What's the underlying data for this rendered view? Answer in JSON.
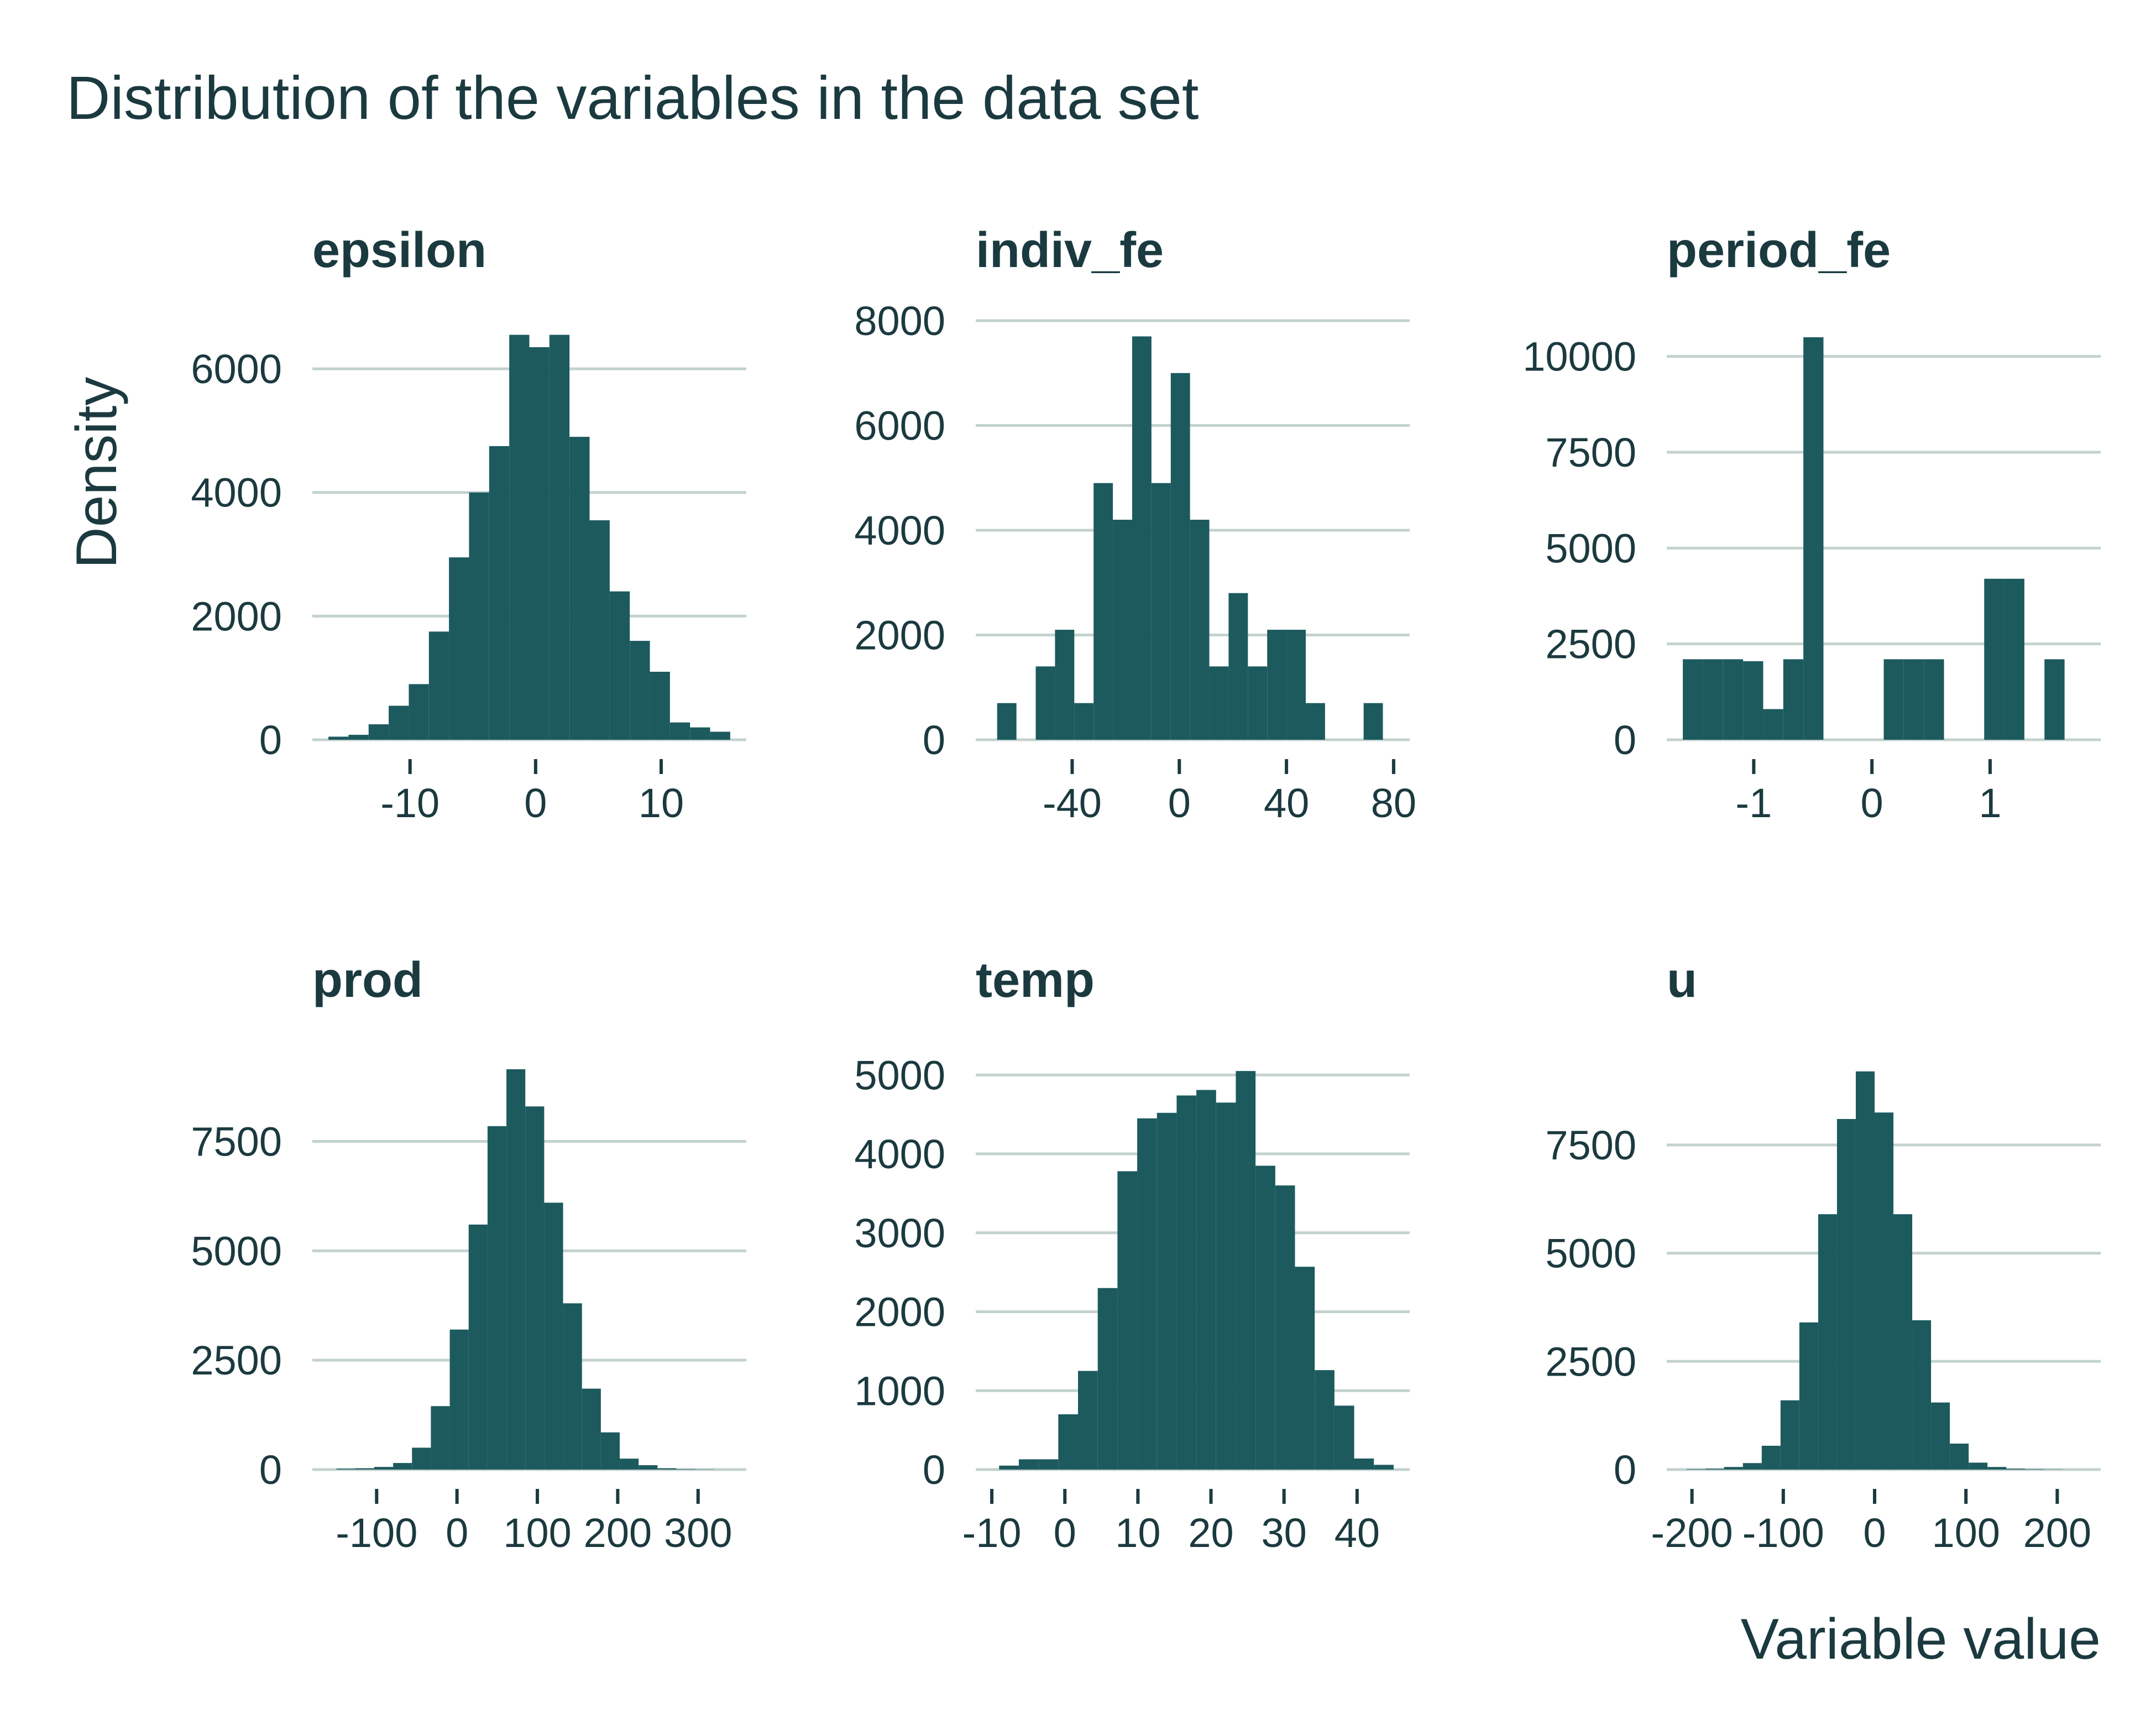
{
  "title": "Distribution of the variables in the data set",
  "ylabel": "Density",
  "xlabel": "Variable value",
  "colors": {
    "bar": "#1c5a5e",
    "grid": "#c3d2cf",
    "text": "#1b3a3f",
    "tick": "#1b3a3f"
  },
  "chart_data": [
    {
      "type": "bar",
      "panel": "epsilon",
      "xlim": [
        -16.5,
        15.5
      ],
      "ylim": [
        0,
        6600
      ],
      "xticks": [
        -10,
        0,
        10
      ],
      "xtick_labels": [
        "-10",
        "0",
        "10"
      ],
      "yticks": [
        0,
        2000,
        4000,
        6000
      ],
      "ytick_labels": [
        "0",
        "2000",
        "4000",
        "6000"
      ],
      "bin_width": 1.6,
      "bins_start": [
        -16.5,
        -14.9,
        -13.3,
        -11.7,
        -10.1,
        -8.5,
        -6.9,
        -5.3,
        -3.7,
        -2.1,
        -0.5,
        1.1,
        2.7,
        4.3,
        5.9,
        7.5,
        9.1,
        10.7,
        12.3,
        13.9
      ],
      "values": [
        50,
        80,
        250,
        550,
        900,
        1750,
        2950,
        4000,
        4750,
        6550,
        6350,
        6550,
        4900,
        3550,
        2400,
        1600,
        1100,
        280,
        200,
        130
      ]
    },
    {
      "type": "bar",
      "panel": "indiv_fe",
      "xlim": [
        -70,
        80
      ],
      "ylim": [
        0,
        8000
      ],
      "xticks": [
        -40,
        0,
        40,
        80
      ],
      "xtick_labels": [
        "-40",
        "0",
        "40",
        "80"
      ],
      "yticks": [
        0,
        2000,
        4000,
        6000,
        8000
      ],
      "ytick_labels": [
        "0",
        "2000",
        "4000",
        "6000",
        "8000"
      ],
      "bin_width": 7.2,
      "bins_start": [
        -68,
        -60.8,
        -53.6,
        -46.4,
        -39.2,
        -32,
        -24.8,
        -17.6,
        -10.4,
        -3.2,
        4,
        11.2,
        18.4,
        25.6,
        32.8,
        40,
        47.2,
        54.4,
        61.6,
        68.8
      ],
      "values": [
        700,
        0,
        1400,
        2100,
        700,
        4900,
        4200,
        7700,
        4900,
        7000,
        4200,
        1400,
        2800,
        1400,
        2100,
        2100,
        700,
        0,
        0,
        700
      ]
    },
    {
      "type": "bar",
      "panel": "period_fe",
      "xlim": [
        -1.6,
        1.8
      ],
      "ylim": [
        0,
        10500
      ],
      "xticks": [
        -1,
        0,
        1
      ],
      "xtick_labels": [
        "-1",
        "0",
        "1"
      ],
      "yticks": [
        0,
        2500,
        5000,
        7500,
        10000
      ],
      "ytick_labels": [
        "0",
        "2500",
        "5000",
        "7500",
        "10000"
      ],
      "bin_width": 0.17,
      "bins_start": [
        -1.6,
        -1.43,
        -1.26,
        -1.09,
        -0.92,
        -0.75,
        -0.58,
        -0.41,
        -0.24,
        -0.07,
        0.1,
        0.27,
        0.44,
        0.61,
        0.78,
        0.95,
        1.12,
        1.29,
        1.46,
        1.63
      ],
      "values": [
        2100,
        2100,
        2100,
        2050,
        800,
        2100,
        10500,
        0,
        0,
        0,
        2100,
        2100,
        2100,
        0,
        0,
        4200,
        4200,
        0,
        2100,
        0
      ]
    },
    {
      "type": "bar",
      "panel": "prod",
      "xlim": [
        -160,
        340
      ],
      "ylim": [
        0,
        9200
      ],
      "xticks": [
        -100,
        0,
        100,
        200,
        300
      ],
      "xtick_labels": [
        "-100",
        "0",
        "100",
        "200",
        "300"
      ],
      "yticks": [
        0,
        2500,
        5000,
        7500
      ],
      "ytick_labels": [
        "0",
        "2500",
        "5000",
        "7500"
      ],
      "bin_width": 23.5,
      "bins_start": [
        -150,
        -126.5,
        -103,
        -79.5,
        -56,
        -32.5,
        -9,
        14.5,
        38,
        61.5,
        85,
        108.5,
        132,
        155.5,
        179,
        202.5,
        226,
        249.5,
        273,
        296.5
      ],
      "values": [
        20,
        30,
        60,
        150,
        500,
        1450,
        3200,
        5600,
        7850,
        9150,
        8300,
        6100,
        3800,
        1850,
        850,
        250,
        100,
        30,
        10,
        5
      ]
    },
    {
      "type": "bar",
      "panel": "temp",
      "xlim": [
        -10,
        45
      ],
      "ylim": [
        0,
        5100
      ],
      "xticks": [
        -10,
        0,
        10,
        20,
        30,
        40
      ],
      "xtick_labels": [
        "-10",
        "0",
        "10",
        "20",
        "30",
        "40"
      ],
      "yticks": [
        0,
        1000,
        2000,
        3000,
        4000,
        5000
      ],
      "ytick_labels": [
        "0",
        "1000",
        "2000",
        "3000",
        "4000",
        "5000"
      ],
      "bin_width": 2.7,
      "bins_start": [
        -9,
        -6.3,
        -3.6,
        -0.9,
        1.8,
        4.5,
        7.2,
        9.9,
        12.6,
        15.3,
        18,
        20.7,
        23.4,
        26.1,
        28.8,
        31.5,
        34.2,
        36.9,
        39.6,
        42.3
      ],
      "values": [
        50,
        130,
        130,
        700,
        1250,
        2300,
        3780,
        4450,
        4520,
        4740,
        4810,
        4650,
        5050,
        3850,
        3600,
        2570,
        1260,
        810,
        140,
        60
      ]
    },
    {
      "type": "bar",
      "panel": "u",
      "xlim": [
        -210,
        230
      ],
      "ylim": [
        0,
        9300
      ],
      "xticks": [
        -200,
        -100,
        0,
        100,
        200
      ],
      "xtick_labels": [
        "-200",
        "-100",
        "0",
        "100",
        "200"
      ],
      "yticks": [
        0,
        2500,
        5000,
        7500
      ],
      "ytick_labels": [
        "0",
        "2500",
        "5000",
        "7500"
      ],
      "bin_width": 20.6,
      "bins_start": [
        -206,
        -185.4,
        -164.8,
        -144.2,
        -123.6,
        -103,
        -82.4,
        -61.8,
        -41.2,
        -20.6,
        0,
        20.6,
        41.2,
        61.8,
        82.4,
        103,
        123.6,
        144.2,
        164.8,
        185.4
      ],
      "values": [
        10,
        20,
        60,
        150,
        550,
        1600,
        3400,
        5900,
        8100,
        9200,
        8250,
        5900,
        3450,
        1550,
        600,
        160,
        60,
        20,
        10,
        5
      ]
    }
  ]
}
